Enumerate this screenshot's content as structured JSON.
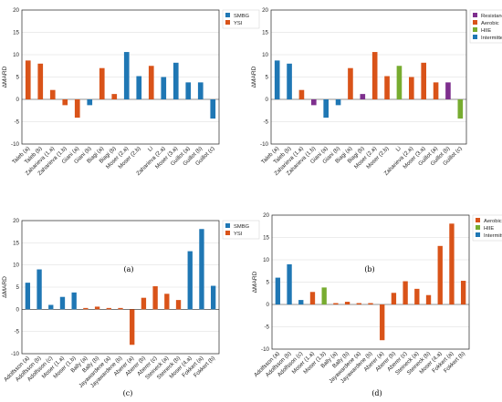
{
  "colors": {
    "blue": "#1f77b4",
    "orange": "#d95319",
    "purple": "#7e2f8e",
    "green": "#77ac30"
  },
  "chart_data": [
    {
      "panel": "(a)",
      "type": "bar",
      "ylabel": "ΔMARD",
      "ylim": [
        -10,
        20
      ],
      "yticks": [
        -10,
        -5,
        0,
        5,
        10,
        15,
        20
      ],
      "grid": true,
      "legend_placement": "top-right",
      "legend": [
        {
          "name": "SMBG",
          "color": "#1f77b4"
        },
        {
          "name": "YSI",
          "color": "#d95319"
        }
      ],
      "categories": [
        "Taleb (a)",
        "Taleb (b)",
        "Zaharieva (1.a)",
        "Zaharieva (1.b)",
        "Giani (a)",
        "Giani (b)",
        "Biagi (a)",
        "Biagi (b)",
        "Moser (2.a)",
        "Moser (2.b)",
        "Li",
        "Zaharieva (2.a)",
        "Moser (3.a)",
        "Guillot (a)",
        "Guillot (b)",
        "Guillot (c)"
      ],
      "values": [
        8.7,
        8.0,
        2.1,
        -1.3,
        -4.1,
        -1.3,
        7.0,
        1.2,
        10.6,
        5.2,
        7.5,
        5.0,
        8.2,
        3.8,
        3.8,
        -4.3
      ],
      "series_of_bar": [
        "YSI",
        "YSI",
        "YSI",
        "YSI",
        "YSI",
        "SMBG",
        "YSI",
        "YSI",
        "SMBG",
        "SMBG",
        "YSI",
        "SMBG",
        "SMBG",
        "SMBG",
        "SMBG",
        "SMBG"
      ]
    },
    {
      "panel": "(b)",
      "type": "bar",
      "ylabel": "ΔMARD",
      "ylim": [
        -10,
        20
      ],
      "yticks": [
        -10,
        -5,
        0,
        5,
        10,
        15,
        20
      ],
      "grid": true,
      "legend_placement": "top-right",
      "legend": [
        {
          "name": "Resistance",
          "color": "#7e2f8e"
        },
        {
          "name": "Aerobic",
          "color": "#d95319"
        },
        {
          "name": "HIIE",
          "color": "#77ac30"
        },
        {
          "name": "Intermittent",
          "color": "#1f77b4"
        }
      ],
      "categories": [
        "Taleb (a)",
        "Taleb (b)",
        "Zaharieva (1.a)",
        "Zaharieva (1.b)",
        "Giani (a)",
        "Giani (b)",
        "Biagi (a)",
        "Biagi (b)",
        "Moser (2.a)",
        "Moser (2.b)",
        "Li",
        "Zaharieva (2.a)",
        "Moser (3.a)",
        "Guillot (a)",
        "Guillot (b)",
        "Guillot (c)"
      ],
      "values": [
        8.7,
        8.0,
        2.1,
        -1.3,
        -4.1,
        -1.3,
        7.0,
        1.2,
        10.6,
        5.2,
        7.5,
        5.0,
        8.2,
        3.8,
        3.8,
        -4.3
      ],
      "series_of_bar": [
        "Intermittent",
        "Intermittent",
        "Aerobic",
        "Resistance",
        "Intermittent",
        "Intermittent",
        "Aerobic",
        "Resistance",
        "Aerobic",
        "Aerobic",
        "HIIE",
        "Aerobic",
        "Aerobic",
        "Aerobic",
        "Resistance",
        "HIIE"
      ]
    },
    {
      "panel": "(c)",
      "type": "bar",
      "ylabel": "ΔMARD",
      "ylim": [
        -10,
        20
      ],
      "yticks": [
        -10,
        -5,
        0,
        5,
        10,
        15,
        20
      ],
      "grid": true,
      "legend_placement": "top-right",
      "legend": [
        {
          "name": "SMBG",
          "color": "#1f77b4"
        },
        {
          "name": "YSI",
          "color": "#d95319"
        }
      ],
      "categories": [
        "Adolfsson (a)",
        "Adolfsson (b)",
        "Adolfsson (c)",
        "Moser (1.a)",
        "Moser (1.b)",
        "Bally (a)",
        "Bally (b)",
        "Jayawardene (a)",
        "Jayawardene (b)",
        "Aberer (a)",
        "Aberer (b)",
        "Aberer (c)",
        "Steineck (a)",
        "Steineck (b)",
        "Moser (4.a)",
        "Fokkert (a)",
        "Fokkert (b)"
      ],
      "values": [
        6.0,
        9.0,
        1.0,
        2.8,
        3.8,
        0.3,
        0.6,
        0.3,
        0.3,
        -8.0,
        2.6,
        5.2,
        3.5,
        2.1,
        13.1,
        18.1,
        5.3
      ],
      "series_of_bar": [
        "SMBG",
        "SMBG",
        "SMBG",
        "SMBG",
        "SMBG",
        "YSI",
        "YSI",
        "YSI",
        "YSI",
        "YSI",
        "YSI",
        "YSI",
        "YSI",
        "YSI",
        "SMBG",
        "SMBG",
        "SMBG"
      ]
    },
    {
      "panel": "(d)",
      "type": "bar",
      "ylabel": "ΔMARD",
      "ylim": [
        -10,
        20
      ],
      "yticks": [
        -10,
        -5,
        0,
        5,
        10,
        15,
        20
      ],
      "grid": true,
      "legend_placement": "top-right",
      "legend": [
        {
          "name": "Aerobic",
          "color": "#d95319"
        },
        {
          "name": "HIIE",
          "color": "#77ac30"
        },
        {
          "name": "Intermittent",
          "color": "#1f77b4"
        }
      ],
      "categories": [
        "Adolfsson (a)",
        "Adolfsson (b)",
        "Adolfsson (c)",
        "Moser (1.a)",
        "Moser (1.b)",
        "Bally (a)",
        "Bally (b)",
        "Jayawardene (a)",
        "Jayawardene (b)",
        "Aberer (a)",
        "Aberer (b)",
        "Aberer (c)",
        "Steineck (a)",
        "Steineck (b)",
        "Moser (4.a)",
        "Fokkert (a)",
        "Fokkert (b)"
      ],
      "values": [
        6.0,
        9.0,
        1.0,
        2.8,
        3.8,
        0.3,
        0.6,
        0.3,
        0.3,
        -8.0,
        2.6,
        5.2,
        3.5,
        2.1,
        13.1,
        18.1,
        5.3
      ],
      "series_of_bar": [
        "Intermittent",
        "Intermittent",
        "Intermittent",
        "Aerobic",
        "HIIE",
        "Aerobic",
        "Aerobic",
        "Aerobic",
        "Aerobic",
        "Aerobic",
        "Aerobic",
        "Aerobic",
        "Aerobic",
        "Aerobic",
        "Aerobic",
        "Aerobic",
        "Aerobic"
      ]
    }
  ]
}
